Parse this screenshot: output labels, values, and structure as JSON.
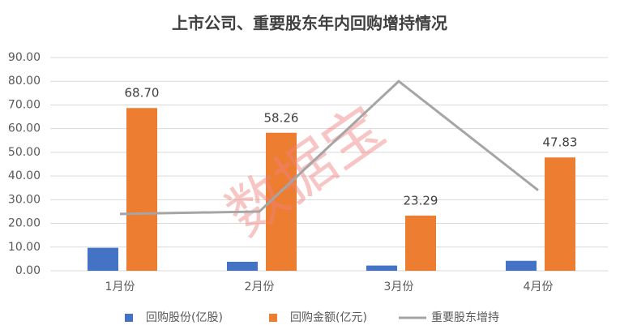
{
  "chart_data": {
    "type": "bar",
    "title": "上市公司、重要股东年内回购增持情况",
    "categories": [
      "1月份",
      "2月份",
      "3月份",
      "4月份"
    ],
    "series": [
      {
        "name": "回购股份(亿股)",
        "color": "#4472c4",
        "type": "bar",
        "values": [
          9.7,
          3.8,
          2.2,
          4.2
        ]
      },
      {
        "name": "回购金额(亿元)",
        "color": "#ed7d31",
        "type": "bar",
        "values": [
          68.7,
          58.26,
          23.29,
          47.83
        ],
        "value_labels": [
          "68.70",
          "58.26",
          "23.29",
          "47.83"
        ]
      },
      {
        "name": "重要股东增持",
        "color": "#a5a5a5",
        "type": "line",
        "values": [
          24,
          25,
          80,
          34
        ]
      }
    ],
    "ylim": [
      0,
      90
    ],
    "yticks": [
      {
        "value": 0,
        "label": "0.00"
      },
      {
        "value": 10,
        "label": "10.00"
      },
      {
        "value": 20,
        "label": "20.00"
      },
      {
        "value": 30,
        "label": "30.00"
      },
      {
        "value": 40,
        "label": "40.00"
      },
      {
        "value": 50,
        "label": "50.00"
      },
      {
        "value": 60,
        "label": "60.00"
      },
      {
        "value": 70,
        "label": "70.00"
      },
      {
        "value": 80,
        "label": "80.00"
      },
      {
        "value": 90,
        "label": "90.00"
      }
    ],
    "grid": true,
    "legend": "bottom",
    "watermark": "数据宝"
  }
}
